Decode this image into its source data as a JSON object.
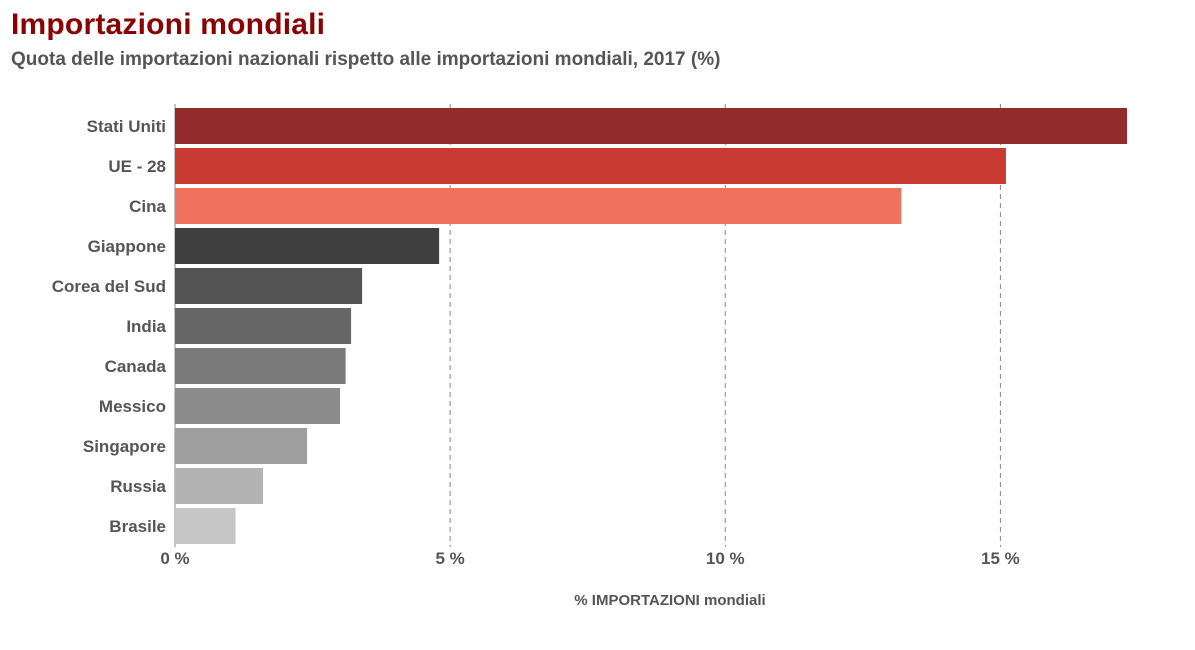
{
  "title": "Importazioni mondiali",
  "subtitle": "Quota delle importazioni nazionali rispetto alle importazioni mondiali, 2017 (%)",
  "chart_data": {
    "type": "bar",
    "orientation": "horizontal",
    "categories": [
      "Stati Uniti",
      "UE - 28",
      "Cina",
      "Giappone",
      "Corea del Sud",
      "India",
      "Canada",
      "Messico",
      "Singapore",
      "Russia",
      "Brasile"
    ],
    "values": [
      17.3,
      15.1,
      13.2,
      4.8,
      3.4,
      3.2,
      3.1,
      3.0,
      2.4,
      1.6,
      1.1
    ],
    "colors": [
      "#922b2b",
      "#c93a33",
      "#ef735c",
      "#3f3f3f",
      "#545454",
      "#666666",
      "#7a7a7a",
      "#8c8c8c",
      "#9f9f9f",
      "#b3b3b3",
      "#c6c6c6"
    ],
    "xlim": [
      0,
      17.5
    ],
    "xticks": [
      0,
      5,
      10,
      15
    ],
    "xtick_labels": [
      "0 %",
      "5 %",
      "10 %",
      "15 %"
    ],
    "xlabel": "% IMPORTAZIONI mondiali",
    "ylabel": "",
    "grid": "vertical dashed"
  }
}
